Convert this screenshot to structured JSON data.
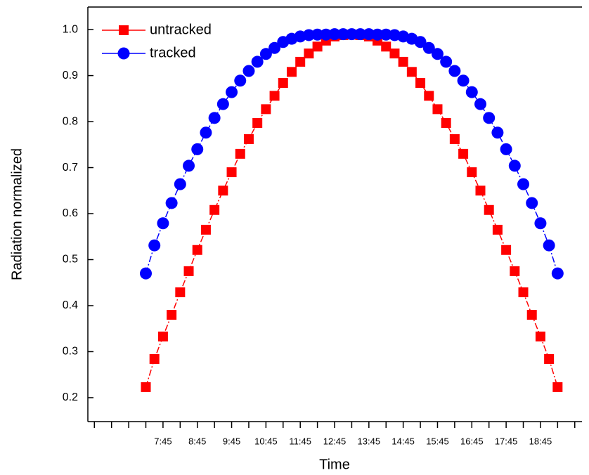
{
  "chart_data": {
    "type": "line",
    "x_label": "Time",
    "y_label": "Radiation normalized",
    "x": [
      7.25,
      7.5,
      7.75,
      8,
      8.25,
      8.5,
      8.75,
      9,
      9.25,
      9.5,
      9.75,
      10,
      10.25,
      10.5,
      10.75,
      11,
      11.25,
      11.5,
      11.75,
      12,
      12.25,
      12.5,
      12.75,
      13,
      13.25,
      13.5,
      13.75,
      14,
      14.25,
      14.5,
      14.75,
      15,
      15.25,
      15.5,
      15.75,
      16,
      16.25,
      16.5,
      16.75,
      17,
      17.25,
      17.5,
      17.75,
      18,
      18.25,
      18.5,
      18.75,
      19,
      19.25
    ],
    "series": [
      {
        "name": "untracked",
        "color": "#ff0000",
        "marker": "square",
        "values": [
          0.223,
          0.284,
          0.333,
          0.38,
          0.429,
          0.475,
          0.521,
          0.565,
          0.608,
          0.65,
          0.69,
          0.73,
          0.762,
          0.797,
          0.827,
          0.856,
          0.884,
          0.908,
          0.93,
          0.948,
          0.963,
          0.976,
          0.985,
          0.988,
          0.989,
          0.988,
          0.985,
          0.976,
          0.963,
          0.948,
          0.93,
          0.908,
          0.884,
          0.856,
          0.827,
          0.797,
          0.762,
          0.73,
          0.69,
          0.65,
          0.608,
          0.565,
          0.521,
          0.475,
          0.429,
          0.38,
          0.333,
          0.284,
          0.223
        ]
      },
      {
        "name": "tracked",
        "color": "#0000ff",
        "marker": "circle",
        "values": [
          0.47,
          0.531,
          0.579,
          0.623,
          0.664,
          0.704,
          0.74,
          0.776,
          0.808,
          0.838,
          0.864,
          0.889,
          0.91,
          0.93,
          0.947,
          0.96,
          0.973,
          0.98,
          0.985,
          0.988,
          0.989,
          0.989,
          0.99,
          0.99,
          0.99,
          0.99,
          0.99,
          0.989,
          0.989,
          0.988,
          0.985,
          0.98,
          0.973,
          0.96,
          0.947,
          0.93,
          0.91,
          0.889,
          0.864,
          0.838,
          0.808,
          0.776,
          0.74,
          0.704,
          0.664,
          0.623,
          0.579,
          0.531,
          0.47
        ]
      }
    ],
    "xlim": [
      5.56,
      19.96
    ],
    "xticks": [
      {
        "value": 7.75,
        "label": "7:45"
      },
      {
        "value": 8.75,
        "label": "8:45"
      },
      {
        "value": 9.75,
        "label": "9:45"
      },
      {
        "value": 10.75,
        "label": "10:45"
      },
      {
        "value": 11.75,
        "label": "11:45"
      },
      {
        "value": 12.75,
        "label": "12:45"
      },
      {
        "value": 13.75,
        "label": "13:45"
      },
      {
        "value": 14.75,
        "label": "14:45"
      },
      {
        "value": 15.75,
        "label": "15:45"
      },
      {
        "value": 16.75,
        "label": "16:45"
      },
      {
        "value": 17.75,
        "label": "17:45"
      },
      {
        "value": 18.75,
        "label": "18:45"
      }
    ],
    "xminorticks": [
      5.75,
      6.25,
      6.75,
      7.25,
      8.25,
      9.25,
      10.25,
      11.25,
      12.25,
      13.25,
      14.25,
      15.25,
      16.25,
      17.25,
      18.25,
      19.25,
      19.75
    ],
    "ylim": [
      0.148,
      1.049
    ],
    "yticks": [
      0.2,
      0.3,
      0.4,
      0.5,
      0.6,
      0.7,
      0.8,
      0.9,
      {
        "value": 1,
        "label": "1.0"
      }
    ],
    "legend": "upper-left",
    "grid": false
  }
}
